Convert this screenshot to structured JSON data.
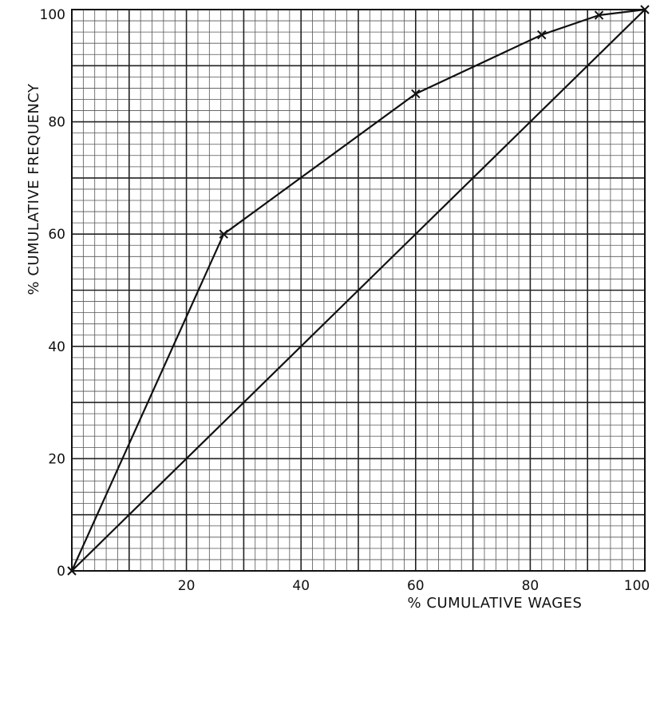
{
  "chart_data": {
    "type": "line",
    "title": "",
    "xlabel": "% CUMULATIVE WAGES",
    "ylabel": "% CUMULATIVE FREQUENCY",
    "xlim": [
      0,
      100
    ],
    "ylim": [
      0,
      100
    ],
    "grid": true,
    "x_ticks": [
      20,
      40,
      60,
      80,
      100
    ],
    "y_ticks": [
      0,
      20,
      40,
      60,
      80,
      100
    ],
    "series": [
      {
        "marker": "x",
        "points": [
          [
            0,
            0
          ],
          [
            26.5,
            60
          ],
          [
            60,
            85
          ],
          [
            82,
            95.5
          ],
          [
            92,
            99
          ],
          [
            100,
            100
          ]
        ]
      },
      {
        "marker": "none",
        "points": [
          [
            0,
            0
          ],
          [
            100,
            100
          ]
        ]
      }
    ]
  }
}
